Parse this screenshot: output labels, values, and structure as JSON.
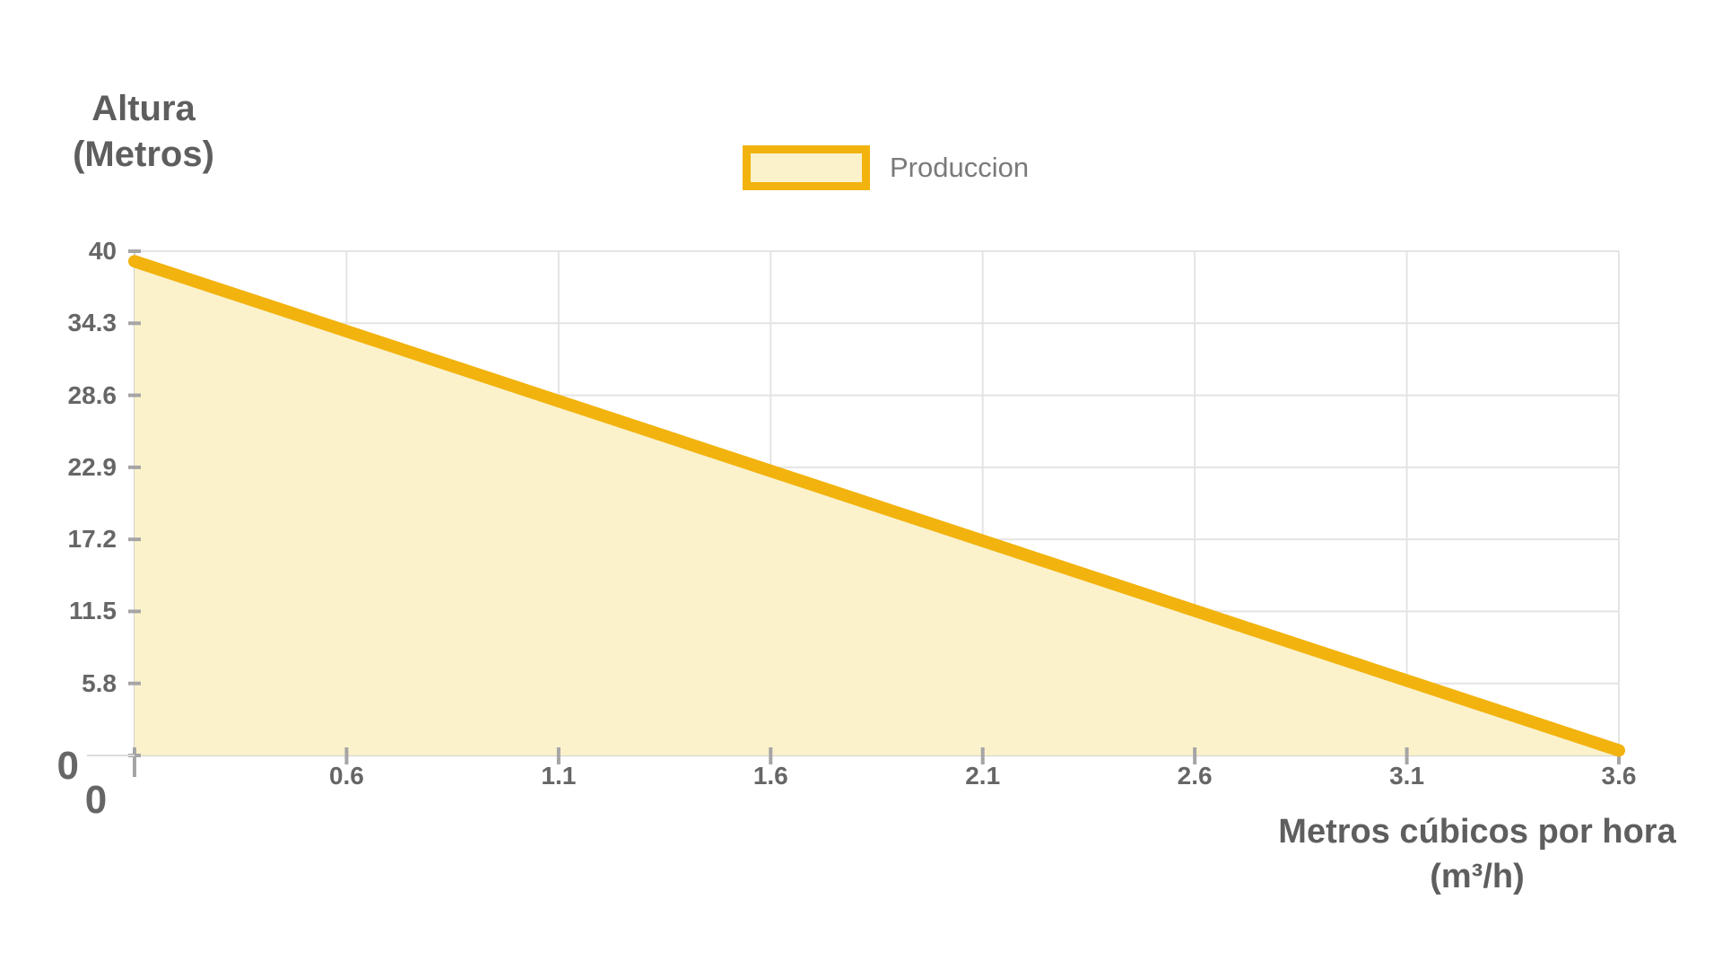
{
  "chart": {
    "y_axis_title_line1": "Altura",
    "y_axis_title_line2": "(Metros)",
    "x_axis_title_line1": "Metros cúbicos por hora",
    "x_axis_title_line2": "(m³/h)",
    "legend": {
      "label": "Produccion"
    },
    "colors": {
      "line": "#F2B30E",
      "fill": "#FBF2CC",
      "grid": "#E4E4E4",
      "axis": "#D2D2D2",
      "tick_mark": "#A5A5A5",
      "title_text": "#5E5E5E",
      "tick_text": "#666666",
      "legend_text": "#7A7A7A",
      "background": "#FFFFFF"
    }
  },
  "chart_data": {
    "type": "area",
    "title": "",
    "series": [
      {
        "name": "Produccion",
        "points": [
          [
            0,
            39.2
          ],
          [
            3.6,
            0.4
          ]
        ]
      }
    ],
    "xlabel": "Metros cúbicos por hora (m³/h)",
    "ylabel": "Altura (Metros)",
    "x_ticks": [
      "0",
      "0.6",
      "1.1",
      "1.6",
      "2.1",
      "2.6",
      "3.1",
      "3.6"
    ],
    "y_ticks": [
      "0",
      "5.8",
      "11.5",
      "17.2",
      "22.9",
      "28.6",
      "34.3",
      "40"
    ],
    "xlim": [
      0,
      3.6
    ],
    "ylim": [
      0,
      40
    ],
    "grid": true,
    "legend_position": "top"
  }
}
